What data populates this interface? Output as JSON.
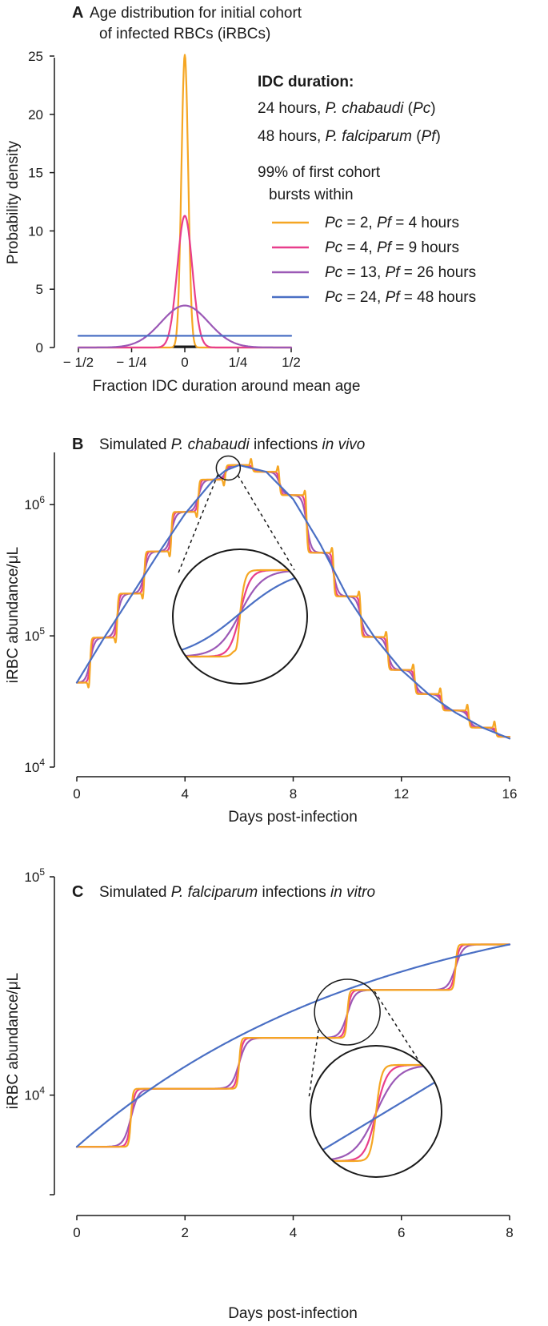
{
  "colors": {
    "c2": "#F5A623",
    "c4": "#E83E8C",
    "c13": "#9B59B6",
    "c24": "#4A6FC4",
    "axis": "#1a1a1a"
  },
  "legend": {
    "heading": "IDC duration:",
    "pc_line_prefix": "24 hours, ",
    "pc_species": "P. chabaudi",
    "pc_abbr_open": " (",
    "pc_abbr": "Pc",
    "pc_abbr_close": ")",
    "pf_line_prefix": "48 hours, ",
    "pf_species": "P. falciparum",
    "pf_abbr_open": " (",
    "pf_abbr": "Pf",
    "pf_abbr_close": ")",
    "burst_line1": "99% of first cohort",
    "burst_line2": "bursts within",
    "items": [
      {
        "key": "c2",
        "pc": "Pc",
        "pc_val": " = 2, ",
        "pf": "Pf",
        "pf_val": " = 4 hours"
      },
      {
        "key": "c4",
        "pc": "Pc",
        "pc_val": " = 4, ",
        "pf": "Pf",
        "pf_val": " = 9 hours"
      },
      {
        "key": "c13",
        "pc": "Pc",
        "pc_val": " = 13, ",
        "pf": "Pf",
        "pf_val": " = 26 hours"
      },
      {
        "key": "c24",
        "pc": "Pc",
        "pc_val": " = 24, ",
        "pf": "Pf",
        "pf_val": " = 48 hours"
      }
    ]
  },
  "chart_data": [
    {
      "panel": "A",
      "type": "line",
      "title_line1": "Age distribution for initial cohort",
      "title_line2": "of infected RBCs (iRBCs)",
      "xlabel": "Fraction IDC duration around mean age",
      "ylabel": "Probability density",
      "xlim": [
        -0.5,
        0.5
      ],
      "ylim": [
        0,
        25
      ],
      "yticks": [
        0,
        5,
        10,
        15,
        20,
        25
      ],
      "xticks": [
        {
          "value": -0.5,
          "label": "− 1/2"
        },
        {
          "value": -0.25,
          "label": "− 1/4"
        },
        {
          "value": 0,
          "label": "0"
        },
        {
          "value": 0.25,
          "label": "1/4"
        },
        {
          "value": 0.5,
          "label": "1/2"
        }
      ],
      "series": [
        {
          "name": "Pc = 2, Pf = 4 hours",
          "color_key": "c2",
          "shape": "gaussian",
          "peak": 25.1
        },
        {
          "name": "Pc = 4, Pf = 9 hours",
          "color_key": "c4",
          "shape": "gaussian",
          "peak": 11.3
        },
        {
          "name": "Pc = 13, Pf = 26 hours",
          "color_key": "c13",
          "shape": "gaussian",
          "peak": 3.6
        },
        {
          "name": "Pc = 24, Pf = 48 hours",
          "color_key": "c24",
          "shape": "uniform",
          "peak": 1.0
        }
      ]
    },
    {
      "panel": "B",
      "type": "line",
      "title_prefix": "Simulated ",
      "title_italic1": "P. chabaudi",
      "title_middle": " infections ",
      "title_italic2": "in vivo",
      "xlabel": "Days post-infection",
      "ylabel": "iRBC abundance/μL",
      "yscale": "log",
      "xlim": [
        0,
        16
      ],
      "ylim": [
        10000,
        2500000
      ],
      "xticks": [
        0,
        4,
        8,
        12,
        16
      ],
      "yticks": [
        {
          "value": 10000,
          "base": "10",
          "exp": "4"
        },
        {
          "value": 100000,
          "base": "10",
          "exp": "5"
        },
        {
          "value": 1000000,
          "base": "10",
          "exp": "6"
        }
      ],
      "step_days": [
        0,
        1,
        2,
        3,
        4,
        5,
        6,
        7,
        8,
        9,
        10,
        11,
        12,
        13,
        14,
        15,
        16
      ],
      "step_values": [
        44000,
        97000,
        210000,
        440000,
        880000,
        1550000,
        2000000,
        1780000,
        1180000,
        430000,
        200000,
        98000,
        55000,
        36000,
        27000,
        20000,
        17000
      ],
      "smooth_x": [
        0,
        1,
        2,
        3,
        4,
        5,
        5.5,
        6,
        7,
        8,
        9,
        10,
        11,
        12,
        13,
        14,
        15,
        16
      ],
      "smooth_y": [
        44000,
        96000,
        200000,
        420000,
        850000,
        1500000,
        1820000,
        2000000,
        1780000,
        1100000,
        500000,
        200000,
        98000,
        55000,
        36000,
        26000,
        20000,
        16500
      ],
      "zoom": {
        "center_day": 5.6,
        "center_value": 1900000
      }
    },
    {
      "panel": "C",
      "type": "line",
      "title_prefix": "Simulated ",
      "title_italic1": "P. falciparum",
      "title_middle": " infections ",
      "title_italic2": "in vitro",
      "xlabel": "Days post-infection",
      "ylabel": "iRBC abundance/μL",
      "yscale": "log",
      "xlim": [
        0,
        8
      ],
      "ylim": [
        3500,
        100000
      ],
      "xticks": [
        0,
        2,
        4,
        6,
        8
      ],
      "yticks": [
        {
          "value": 10000,
          "base": "10",
          "exp": "4"
        },
        {
          "value": 100000,
          "base": "10",
          "exp": "5"
        }
      ],
      "step_days": [
        0,
        2,
        4,
        6,
        8
      ],
      "step_values": [
        5800,
        10700,
        18300,
        30300,
        49000
      ],
      "smooth_start": 5800,
      "smooth_end": 49000,
      "zoom": {
        "center_day": 5.0,
        "center_value": 24000
      }
    }
  ]
}
